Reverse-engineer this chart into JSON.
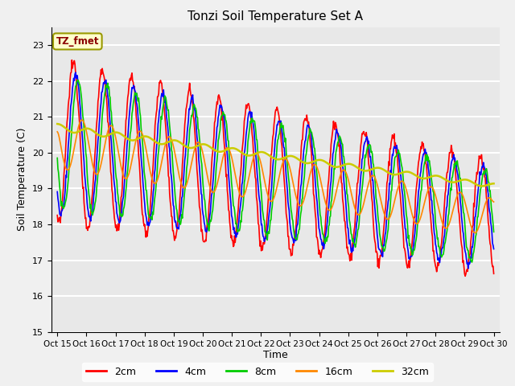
{
  "title": "Tonzi Soil Temperature Set A",
  "xlabel": "Time",
  "ylabel": "Soil Temperature (C)",
  "annotation": "TZ_fmet",
  "ylim": [
    15.0,
    23.5
  ],
  "yticks": [
    15.0,
    16.0,
    17.0,
    18.0,
    19.0,
    20.0,
    21.0,
    22.0,
    23.0
  ],
  "xtick_labels": [
    "Oct 15",
    "Oct 16",
    "Oct 17",
    "Oct 18",
    "Oct 19",
    "Oct 20",
    "Oct 21",
    "Oct 22",
    "Oct 23",
    "Oct 24",
    "Oct 25",
    "Oct 26",
    "Oct 27",
    "Oct 28",
    "Oct 29",
    "Oct 30"
  ],
  "colors": {
    "2cm": "#ff0000",
    "4cm": "#0000ff",
    "8cm": "#00cc00",
    "16cm": "#ff8800",
    "32cm": "#cccc00"
  },
  "line_widths": {
    "2cm": 1.2,
    "4cm": 1.2,
    "8cm": 1.2,
    "16cm": 1.2,
    "32cm": 1.8
  },
  "legend_labels": [
    "2cm",
    "4cm",
    "8cm",
    "16cm",
    "32cm"
  ],
  "fig_bg_color": "#f0f0f0",
  "plot_bg_color": "#e8e8e8",
  "n_points": 720
}
